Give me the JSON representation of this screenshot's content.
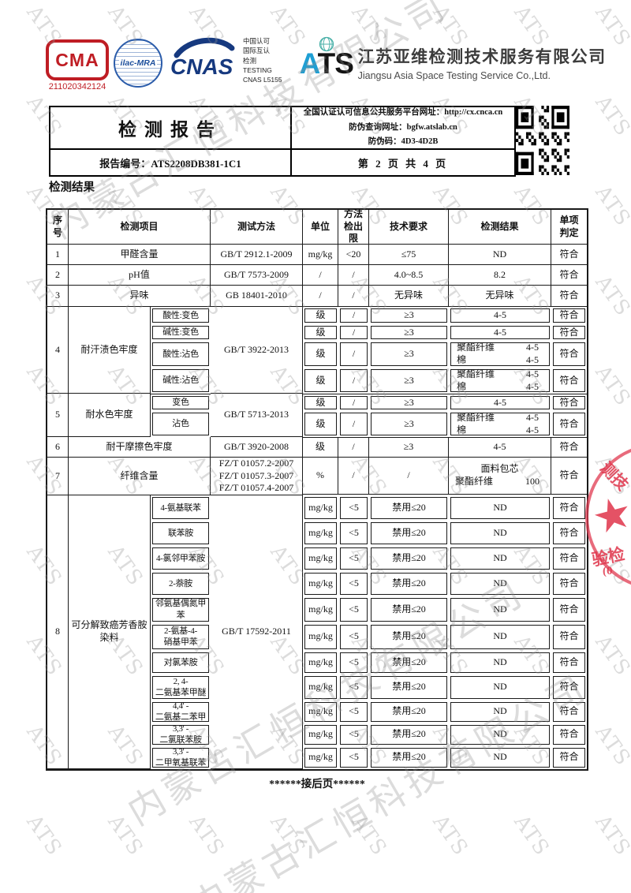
{
  "certification": {
    "cma_label": "CMA",
    "cma_number": "211020342124",
    "ilac_label": "ilac-MRA",
    "cnas_label": "CNAS",
    "accreditation_lines": [
      "中国认可",
      "国际互认",
      "检测",
      "TESTING",
      "CNAS L5155"
    ],
    "ats_letters": [
      "A",
      "T",
      "S"
    ]
  },
  "company": {
    "name_cn": "江苏亚维检测技术服务有限公司",
    "name_en": "Jiangsu Asia Space Testing Service Co.,Ltd."
  },
  "report_header": {
    "title": "检测报告",
    "info_lines": [
      "全国认证认可信息公共服务平台网址：http://cx.cnca.cn",
      "防伪查询网址：bgfw.atslab.cn",
      "防伪码：4D3-4D2B"
    ],
    "report_no": "报告编号：ATS2208DB381-1C1",
    "page_info": "第 2 页 共 4 页"
  },
  "section_title": "检测结果",
  "footer_note": "******接后页******",
  "watermark": {
    "small": "ATS",
    "big": "内蒙古汇恒科技有限公司"
  },
  "stamp": {
    "star": "★",
    "fragment_top": "测技",
    "fragment_bottom": "验检",
    "fragment_paren": "(0"
  },
  "colors": {
    "cma_red": "#bf1d24",
    "cnas_blue": "#16397f",
    "ilac_blue": "#2b5caa",
    "ats_blue": "#1e9fd4",
    "stamp_red": "#e03a50",
    "table_line": "#1a1a1a"
  },
  "table": {
    "headers": [
      "序号",
      "检测项目",
      "测试方法",
      "单位",
      "方法\n检出限",
      "技术要求",
      "检测结果",
      "单项\n判定"
    ],
    "groups": [
      {
        "no": "1",
        "item": "甲醛含量",
        "method": "GB/T 2912.1-2009",
        "rows": [
          {
            "unit": "mg/kg",
            "lod": "<20",
            "req": "≤75",
            "res": [
              {
                "c": "ND"
              }
            ],
            "v": "符合"
          }
        ]
      },
      {
        "no": "2",
        "item": "pH值",
        "method": "GB/T 7573-2009",
        "rows": [
          {
            "unit": "/",
            "lod": "/",
            "req": "4.0~8.5",
            "res": [
              {
                "c": "8.2"
              }
            ],
            "v": "符合"
          }
        ]
      },
      {
        "no": "3",
        "item": "异味",
        "method": "GB 18401-2010",
        "rows": [
          {
            "unit": "/",
            "lod": "/",
            "req": "无异味",
            "res": [
              {
                "c": "无异味"
              }
            ],
            "v": "符合"
          }
        ]
      },
      {
        "no": "4",
        "item": "耐汗渍色牢度",
        "method": "GB/T 3922-2013",
        "rows": [
          {
            "sub": "酸性:变色",
            "unit": "级",
            "lod": "/",
            "req": "≥3",
            "res": [
              {
                "c": "4-5"
              }
            ],
            "v": "符合"
          },
          {
            "sub": "碱性:变色",
            "unit": "级",
            "lod": "/",
            "req": "≥3",
            "res": [
              {
                "c": "4-5"
              }
            ],
            "v": "符合"
          },
          {
            "sub": "酸性:沾色",
            "unit": "级",
            "lod": "/",
            "req": "≥3",
            "res": [
              {
                "l": "聚酯纤维",
                "r": "4-5"
              },
              {
                "l": "棉",
                "r": "4-5"
              }
            ],
            "v": "符合"
          },
          {
            "sub": "碱性:沾色",
            "unit": "级",
            "lod": "/",
            "req": "≥3",
            "res": [
              {
                "l": "聚酯纤维",
                "r": "4-5"
              },
              {
                "l": "棉",
                "r": "4-5"
              }
            ],
            "v": "符合"
          }
        ]
      },
      {
        "no": "5",
        "item": "耐水色牢度",
        "method": "GB/T 5713-2013",
        "rows": [
          {
            "sub": "变色",
            "unit": "级",
            "lod": "/",
            "req": "≥3",
            "res": [
              {
                "c": "4-5"
              }
            ],
            "v": "符合"
          },
          {
            "sub": "沾色",
            "unit": "级",
            "lod": "/",
            "req": "≥3",
            "res": [
              {
                "l": "聚酯纤维",
                "r": "4-5"
              },
              {
                "l": "棉",
                "r": "4-5"
              }
            ],
            "v": "符合"
          }
        ]
      },
      {
        "no": "6",
        "item": "耐干摩擦色牢度",
        "method": "GB/T 3920-2008",
        "rows": [
          {
            "unit": "级",
            "lod": "/",
            "req": "≥3",
            "res": [
              {
                "c": "4-5"
              }
            ],
            "v": "符合"
          }
        ]
      },
      {
        "no": "7",
        "item": "纤维含量",
        "method": "FZ/T 01057.2-2007\nFZ/T 01057.3-2007\nFZ/T 01057.4-2007",
        "rows": [
          {
            "unit": "%",
            "lod": "/",
            "req": "/",
            "res": [
              {
                "c": "面料包芯"
              },
              {
                "l": "聚酯纤维",
                "r": "100"
              }
            ],
            "v": "符合"
          }
        ]
      },
      {
        "no": "8",
        "item": "可分解致癌芳香胺\n染料",
        "method": "GB/T 17592-2011",
        "rows": [
          {
            "sub": "4-氨基联苯",
            "unit": "mg/kg",
            "lod": "<5",
            "req": "禁用≤20",
            "res": [
              {
                "c": "ND"
              }
            ],
            "v": "符合"
          },
          {
            "sub": "联苯胺",
            "unit": "mg/kg",
            "lod": "<5",
            "req": "禁用≤20",
            "res": [
              {
                "c": "ND"
              }
            ],
            "v": "符合"
          },
          {
            "sub": "4-氯邻甲苯胺",
            "unit": "mg/kg",
            "lod": "<5",
            "req": "禁用≤20",
            "res": [
              {
                "c": "ND"
              }
            ],
            "v": "符合"
          },
          {
            "sub": "2-萘胺",
            "unit": "mg/kg",
            "lod": "<5",
            "req": "禁用≤20",
            "res": [
              {
                "c": "ND"
              }
            ],
            "v": "符合"
          },
          {
            "sub": "邻氨基偶氮甲\n苯",
            "unit": "mg/kg",
            "lod": "<5",
            "req": "禁用≤20",
            "res": [
              {
                "c": "ND"
              }
            ],
            "v": "符合"
          },
          {
            "sub": "2-氨基-4-\n硝基甲苯",
            "unit": "mg/kg",
            "lod": "<5",
            "req": "禁用≤20",
            "res": [
              {
                "c": "ND"
              }
            ],
            "v": "符合"
          },
          {
            "sub": "对氯苯胺",
            "unit": "mg/kg",
            "lod": "<5",
            "req": "禁用≤20",
            "res": [
              {
                "c": "ND"
              }
            ],
            "v": "符合"
          },
          {
            "sub": "2, 4-\n二氨基苯甲醚",
            "unit": "mg/kg",
            "lod": "<5",
            "req": "禁用≤20",
            "res": [
              {
                "c": "ND"
              }
            ],
            "v": "符合"
          },
          {
            "sub": "4,4' -\n二氨基二苯甲",
            "unit": "mg/kg",
            "lod": "<5",
            "req": "禁用≤20",
            "res": [
              {
                "c": "ND"
              }
            ],
            "v": "符合"
          },
          {
            "sub": "3,3' -\n二氯联苯胺",
            "unit": "mg/kg",
            "lod": "<5",
            "req": "禁用≤20",
            "res": [
              {
                "c": "ND"
              }
            ],
            "v": "符合"
          },
          {
            "sub": "3,3' -\n二甲氧基联苯",
            "unit": "mg/kg",
            "lod": "<5",
            "req": "禁用≤20",
            "res": [
              {
                "c": "ND"
              }
            ],
            "v": "符合"
          }
        ]
      }
    ]
  }
}
